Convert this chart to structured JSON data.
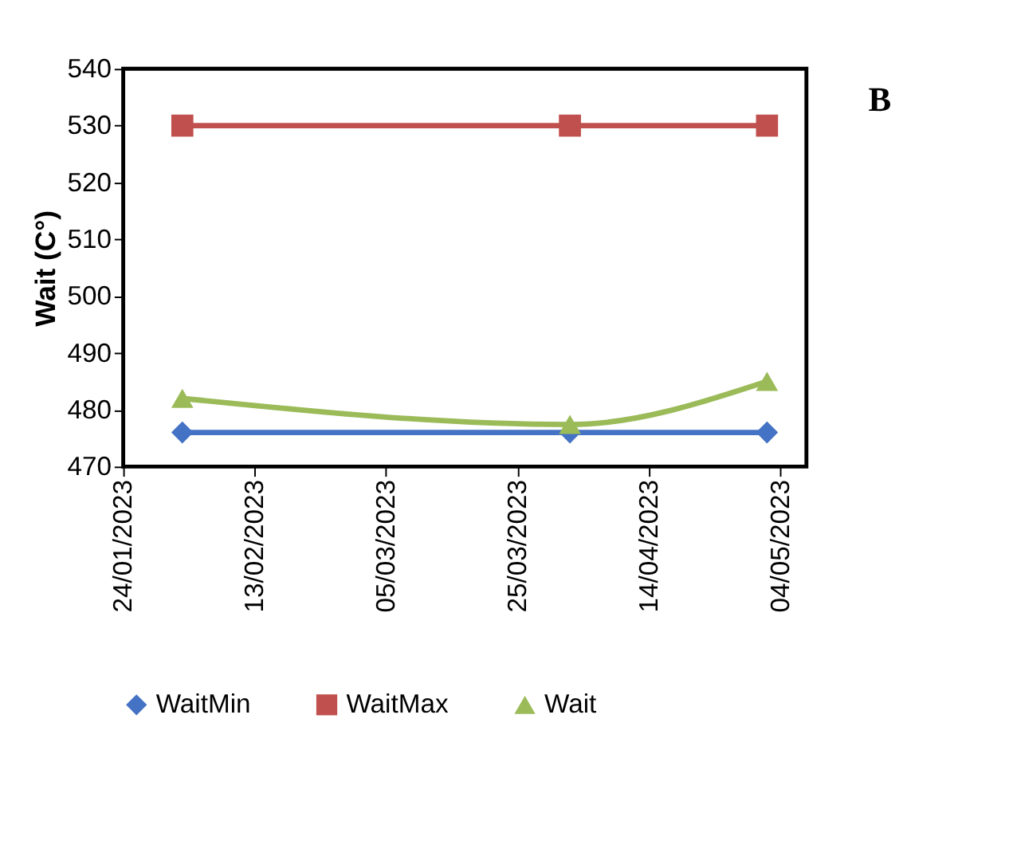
{
  "chart_data": {
    "type": "line",
    "ylabel": "Wait (C°)",
    "annotations": [
      "B"
    ],
    "x": [
      "2023-02-02",
      "2023-04-02",
      "2023-05-02"
    ],
    "series": [
      {
        "name": "WaitMin",
        "color": "#4472c4",
        "marker": "diamond",
        "values": [
          476,
          476,
          476
        ]
      },
      {
        "name": "WaitMax",
        "color": "#c0504d",
        "marker": "square",
        "values": [
          530,
          530,
          530
        ]
      },
      {
        "name": "Wait",
        "color": "#9bbb59",
        "marker": "triangle",
        "values": [
          482,
          477.4,
          485
        ]
      }
    ],
    "xlim": [
      "2023-01-24",
      "2023-05-08"
    ],
    "xticks": [
      {
        "value": "2023-01-24",
        "label": "24/01/2023"
      },
      {
        "value": "2023-02-13",
        "label": "13/02/2023"
      },
      {
        "value": "2023-03-05",
        "label": "05/03/2023"
      },
      {
        "value": "2023-03-25",
        "label": "25/03/2023"
      },
      {
        "value": "2023-04-14",
        "label": "14/04/2023"
      },
      {
        "value": "2023-05-04",
        "label": "04/05/2023"
      }
    ],
    "ylim": [
      470,
      540
    ],
    "yticks": [
      470,
      480,
      490,
      500,
      510,
      520,
      530,
      540
    ],
    "grid": false,
    "legend": "bottom",
    "line_style": "solid"
  }
}
